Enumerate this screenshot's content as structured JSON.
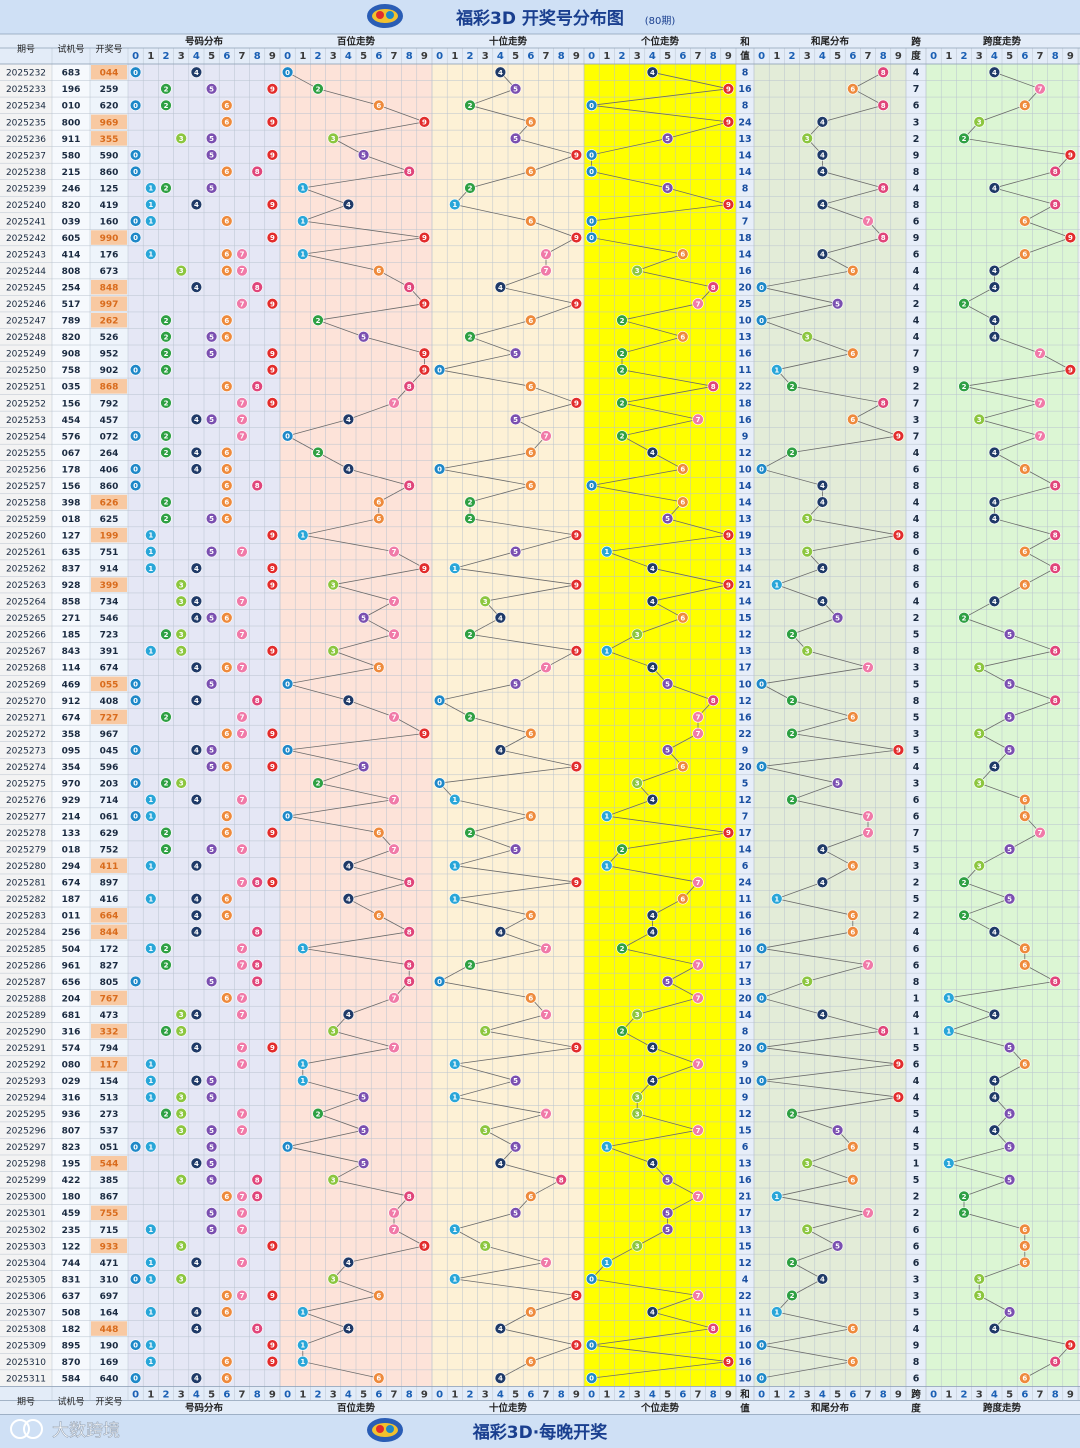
{
  "header": {
    "title": "福彩3D 开奖号分布图",
    "period_badge": "(80期)"
  },
  "footer": {
    "brand": "大数跨境",
    "slogan": "福彩3D·每晚开奖"
  },
  "labels": {
    "issue": "期号",
    "test": "试机号",
    "draw": "开奖号",
    "dist": "号码分布",
    "bai": "百位走势",
    "shi": "十位走势",
    "ge": "个位走势",
    "sum_top": "和",
    "sum_bottom": "值",
    "tail": "和尾分布",
    "span_top": "跨",
    "span_bottom": "度",
    "span_trend": "跨度走势"
  },
  "digits": [
    "0",
    "1",
    "2",
    "3",
    "4",
    "5",
    "6",
    "7",
    "8",
    "9"
  ],
  "colors": {
    "title_bg": "#cfe0f5",
    "header_bg": "#e3ecf8",
    "issue_bg": "#f3f3f3",
    "draw_bg": "#eef4fb",
    "draw_highlight": "#f8c9a2",
    "draw_text_highlight": "#d96b1c",
    "dist_bg": "#e5e7f5",
    "bai_bg": "#fde3d9",
    "shi_bg": "#fdf1d6",
    "ge_bg": "#ffff00",
    "sum_bg": "#e7eef9",
    "tail_bg": "#e3ecd8",
    "span_bg": "#dcf6d4",
    "ball_colors": [
      "#1e88c8",
      "#29a6d8",
      "#2ea043",
      "#8cc63f",
      "#1f3a68",
      "#7a4fb0",
      "#ee8a3c",
      "#f07aa8",
      "#e0457a",
      "#e22c2c"
    ]
  },
  "chart_data": {
    "type": "table",
    "title": "福彩3D 开奖号分布图",
    "issue_count": 80,
    "rows": [
      {
        "issue": "2025232",
        "test": "683",
        "draw": "044",
        "sum": 8,
        "span": 4
      },
      {
        "issue": "2025233",
        "test": "196",
        "draw": "259",
        "sum": 16,
        "span": 7
      },
      {
        "issue": "2025234",
        "test": "010",
        "draw": "620",
        "sum": 8,
        "span": 6
      },
      {
        "issue": "2025235",
        "test": "800",
        "draw": "969",
        "sum": 24,
        "span": 3
      },
      {
        "issue": "2025236",
        "test": "911",
        "draw": "355",
        "sum": 13,
        "span": 2
      },
      {
        "issue": "2025237",
        "test": "580",
        "draw": "590",
        "sum": 14,
        "span": 9
      },
      {
        "issue": "2025238",
        "test": "215",
        "draw": "860",
        "sum": 14,
        "span": 8
      },
      {
        "issue": "2025239",
        "test": "246",
        "draw": "125",
        "sum": 8,
        "span": 4
      },
      {
        "issue": "2025240",
        "test": "820",
        "draw": "419",
        "sum": 14,
        "span": 8
      },
      {
        "issue": "2025241",
        "test": "039",
        "draw": "160",
        "sum": 7,
        "span": 6
      },
      {
        "issue": "2025242",
        "test": "605",
        "draw": "990",
        "sum": 18,
        "span": 9
      },
      {
        "issue": "2025243",
        "test": "414",
        "draw": "176",
        "sum": 14,
        "span": 6
      },
      {
        "issue": "2025244",
        "test": "808",
        "draw": "673",
        "sum": 16,
        "span": 4
      },
      {
        "issue": "2025245",
        "test": "254",
        "draw": "848",
        "sum": 20,
        "span": 4
      },
      {
        "issue": "2025246",
        "test": "517",
        "draw": "997",
        "sum": 25,
        "span": 2
      },
      {
        "issue": "2025247",
        "test": "789",
        "draw": "262",
        "sum": 10,
        "span": 4
      },
      {
        "issue": "2025248",
        "test": "820",
        "draw": "526",
        "sum": 13,
        "span": 4
      },
      {
        "issue": "2025249",
        "test": "908",
        "draw": "952",
        "sum": 16,
        "span": 7
      },
      {
        "issue": "2025250",
        "test": "758",
        "draw": "902",
        "sum": 11,
        "span": 9
      },
      {
        "issue": "2025251",
        "test": "035",
        "draw": "868",
        "sum": 22,
        "span": 2
      },
      {
        "issue": "2025252",
        "test": "156",
        "draw": "792",
        "sum": 18,
        "span": 7
      },
      {
        "issue": "2025253",
        "test": "454",
        "draw": "457",
        "sum": 16,
        "span": 3
      },
      {
        "issue": "2025254",
        "test": "576",
        "draw": "072",
        "sum": 9,
        "span": 7
      },
      {
        "issue": "2025255",
        "test": "067",
        "draw": "264",
        "sum": 12,
        "span": 4
      },
      {
        "issue": "2025256",
        "test": "178",
        "draw": "406",
        "sum": 10,
        "span": 6
      },
      {
        "issue": "2025257",
        "test": "156",
        "draw": "860",
        "sum": 14,
        "span": 8
      },
      {
        "issue": "2025258",
        "test": "398",
        "draw": "626",
        "sum": 14,
        "span": 4
      },
      {
        "issue": "2025259",
        "test": "018",
        "draw": "625",
        "sum": 13,
        "span": 4
      },
      {
        "issue": "2025260",
        "test": "127",
        "draw": "199",
        "sum": 19,
        "span": 8
      },
      {
        "issue": "2025261",
        "test": "635",
        "draw": "751",
        "sum": 13,
        "span": 6
      },
      {
        "issue": "2025262",
        "test": "837",
        "draw": "914",
        "sum": 14,
        "span": 8
      },
      {
        "issue": "2025263",
        "test": "928",
        "draw": "399",
        "sum": 21,
        "span": 6
      },
      {
        "issue": "2025264",
        "test": "858",
        "draw": "734",
        "sum": 14,
        "span": 4
      },
      {
        "issue": "2025265",
        "test": "271",
        "draw": "546",
        "sum": 15,
        "span": 2
      },
      {
        "issue": "2025266",
        "test": "185",
        "draw": "723",
        "sum": 12,
        "span": 5
      },
      {
        "issue": "2025267",
        "test": "843",
        "draw": "391",
        "sum": 13,
        "span": 8
      },
      {
        "issue": "2025268",
        "test": "114",
        "draw": "674",
        "sum": 17,
        "span": 3
      },
      {
        "issue": "2025269",
        "test": "469",
        "draw": "055",
        "sum": 10,
        "span": 5
      },
      {
        "issue": "2025270",
        "test": "912",
        "draw": "408",
        "sum": 12,
        "span": 8
      },
      {
        "issue": "2025271",
        "test": "674",
        "draw": "727",
        "sum": 16,
        "span": 5
      },
      {
        "issue": "2025272",
        "test": "358",
        "draw": "967",
        "sum": 22,
        "span": 3
      },
      {
        "issue": "2025273",
        "test": "095",
        "draw": "045",
        "sum": 9,
        "span": 5
      },
      {
        "issue": "2025274",
        "test": "354",
        "draw": "596",
        "sum": 20,
        "span": 4
      },
      {
        "issue": "2025275",
        "test": "970",
        "draw": "203",
        "sum": 5,
        "span": 3
      },
      {
        "issue": "2025276",
        "test": "929",
        "draw": "714",
        "sum": 12,
        "span": 6
      },
      {
        "issue": "2025277",
        "test": "214",
        "draw": "061",
        "sum": 7,
        "span": 6
      },
      {
        "issue": "2025278",
        "test": "133",
        "draw": "629",
        "sum": 17,
        "span": 7
      },
      {
        "issue": "2025279",
        "test": "018",
        "draw": "752",
        "sum": 14,
        "span": 5
      },
      {
        "issue": "2025280",
        "test": "294",
        "draw": "411",
        "sum": 6,
        "span": 3
      },
      {
        "issue": "2025281",
        "test": "674",
        "draw": "897",
        "sum": 24,
        "span": 2
      },
      {
        "issue": "2025282",
        "test": "187",
        "draw": "416",
        "sum": 11,
        "span": 5
      },
      {
        "issue": "2025283",
        "test": "011",
        "draw": "664",
        "sum": 16,
        "span": 2
      },
      {
        "issue": "2025284",
        "test": "256",
        "draw": "844",
        "sum": 16,
        "span": 4
      },
      {
        "issue": "2025285",
        "test": "504",
        "draw": "172",
        "sum": 10,
        "span": 6
      },
      {
        "issue": "2025286",
        "test": "961",
        "draw": "827",
        "sum": 17,
        "span": 6
      },
      {
        "issue": "2025287",
        "test": "656",
        "draw": "805",
        "sum": 13,
        "span": 8
      },
      {
        "issue": "2025288",
        "test": "204",
        "draw": "767",
        "sum": 20,
        "span": 1
      },
      {
        "issue": "2025289",
        "test": "681",
        "draw": "473",
        "sum": 14,
        "span": 4
      },
      {
        "issue": "2025290",
        "test": "316",
        "draw": "332",
        "sum": 8,
        "span": 1
      },
      {
        "issue": "2025291",
        "test": "574",
        "draw": "794",
        "sum": 20,
        "span": 5
      },
      {
        "issue": "2025292",
        "test": "080",
        "draw": "117",
        "sum": 9,
        "span": 6
      },
      {
        "issue": "2025293",
        "test": "029",
        "draw": "154",
        "sum": 10,
        "span": 4
      },
      {
        "issue": "2025294",
        "test": "316",
        "draw": "513",
        "sum": 9,
        "span": 4
      },
      {
        "issue": "2025295",
        "test": "936",
        "draw": "273",
        "sum": 12,
        "span": 5
      },
      {
        "issue": "2025296",
        "test": "807",
        "draw": "537",
        "sum": 15,
        "span": 4
      },
      {
        "issue": "2025297",
        "test": "823",
        "draw": "051",
        "sum": 6,
        "span": 5
      },
      {
        "issue": "2025298",
        "test": "195",
        "draw": "544",
        "sum": 13,
        "span": 1
      },
      {
        "issue": "2025299",
        "test": "422",
        "draw": "385",
        "sum": 16,
        "span": 5
      },
      {
        "issue": "2025300",
        "test": "180",
        "draw": "867",
        "sum": 21,
        "span": 2
      },
      {
        "issue": "2025301",
        "test": "459",
        "draw": "755",
        "sum": 17,
        "span": 2
      },
      {
        "issue": "2025302",
        "test": "235",
        "draw": "715",
        "sum": 13,
        "span": 6
      },
      {
        "issue": "2025303",
        "test": "122",
        "draw": "933",
        "sum": 15,
        "span": 6
      },
      {
        "issue": "2025304",
        "test": "744",
        "draw": "471",
        "sum": 12,
        "span": 6
      },
      {
        "issue": "2025305",
        "test": "831",
        "draw": "310",
        "sum": 4,
        "span": 3
      },
      {
        "issue": "2025306",
        "test": "637",
        "draw": "697",
        "sum": 22,
        "span": 3
      },
      {
        "issue": "2025307",
        "test": "508",
        "draw": "164",
        "sum": 11,
        "span": 5
      },
      {
        "issue": "2025308",
        "test": "182",
        "draw": "448",
        "sum": 16,
        "span": 4
      },
      {
        "issue": "2025309",
        "test": "895",
        "draw": "190",
        "sum": 10,
        "span": 9
      },
      {
        "issue": "2025310",
        "test": "870",
        "draw": "169",
        "sum": 16,
        "span": 8
      },
      {
        "issue": "2025311",
        "test": "584",
        "draw": "640",
        "sum": 10,
        "span": 6
      }
    ]
  }
}
